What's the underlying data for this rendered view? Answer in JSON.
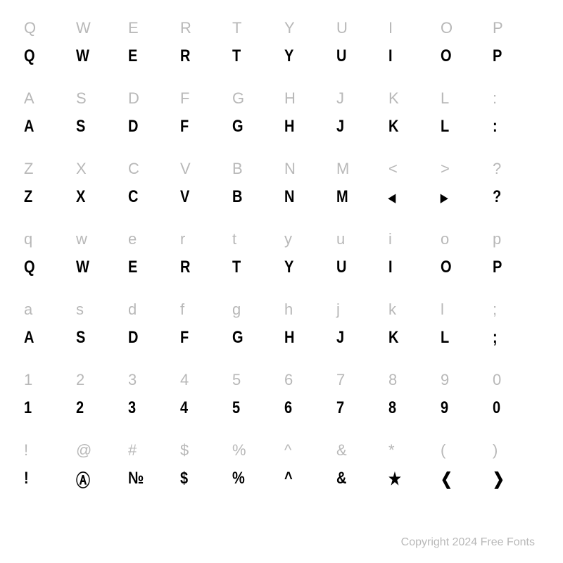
{
  "rows": [
    {
      "refs": [
        "Q",
        "W",
        "E",
        "R",
        "T",
        "Y",
        "U",
        "I",
        "O",
        "P"
      ],
      "glyphs": [
        "Q",
        "W",
        "E",
        "R",
        "T",
        "Y",
        "U",
        "I",
        "O",
        "P"
      ]
    },
    {
      "refs": [
        "A",
        "S",
        "D",
        "F",
        "G",
        "H",
        "J",
        "K",
        "L",
        ":"
      ],
      "glyphs": [
        "A",
        "S",
        "D",
        "F",
        "G",
        "H",
        "J",
        "K",
        "L",
        ":"
      ]
    },
    {
      "refs": [
        "Z",
        "X",
        "C",
        "V",
        "B",
        "N",
        "M",
        "<",
        ">",
        "?"
      ],
      "glyphs": [
        "Z",
        "X",
        "C",
        "V",
        "B",
        "N",
        "M",
        "◂",
        "▸",
        "?"
      ]
    },
    {
      "refs": [
        "q",
        "w",
        "e",
        "r",
        "t",
        "y",
        "u",
        "i",
        "o",
        "p"
      ],
      "glyphs": [
        "Q",
        "W",
        "E",
        "R",
        "T",
        "Y",
        "U",
        "I",
        "O",
        "P"
      ]
    },
    {
      "refs": [
        "a",
        "s",
        "d",
        "f",
        "g",
        "h",
        "j",
        "k",
        "l",
        ";"
      ],
      "glyphs": [
        "A",
        "S",
        "D",
        "F",
        "G",
        "H",
        "J",
        "K",
        "L",
        ";"
      ]
    },
    {
      "refs": [
        "1",
        "2",
        "3",
        "4",
        "5",
        "6",
        "7",
        "8",
        "9",
        "0"
      ],
      "glyphs": [
        "1",
        "2",
        "3",
        "4",
        "5",
        "6",
        "7",
        "8",
        "9",
        "0"
      ]
    },
    {
      "refs": [
        "!",
        "@",
        "#",
        "$",
        "%",
        "^",
        "&",
        "*",
        "(",
        ")"
      ],
      "glyphs": [
        "!",
        "Ⓐ",
        "№",
        "$",
        "%",
        "^",
        "&",
        "★",
        "❮",
        "❯"
      ]
    }
  ],
  "copyright": "Copyright 2024 Free Fonts",
  "colors": {
    "ref": "#b8b8b8",
    "glyph": "#000000",
    "background": "#ffffff"
  },
  "typography": {
    "ref_fontsize": 22,
    "glyph_fontsize": 20,
    "copyright_fontsize": 16
  }
}
